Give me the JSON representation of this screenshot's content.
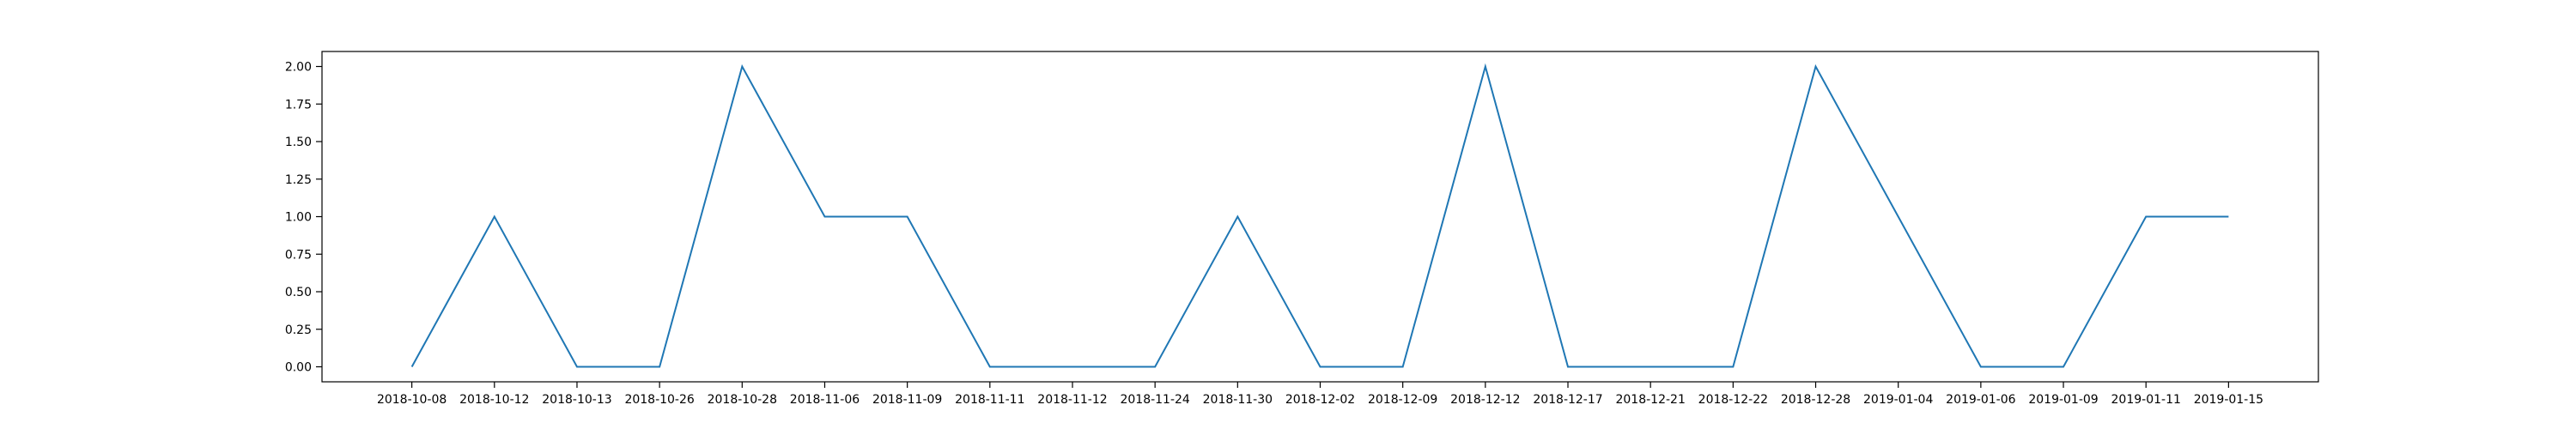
{
  "chart_data": {
    "type": "line",
    "x": [
      "2018-10-08",
      "2018-10-12",
      "2018-10-13",
      "2018-10-26",
      "2018-10-28",
      "2018-11-06",
      "2018-11-09",
      "2018-11-11",
      "2018-11-12",
      "2018-11-24",
      "2018-11-30",
      "2018-12-02",
      "2018-12-09",
      "2018-12-12",
      "2018-12-17",
      "2018-12-21",
      "2018-12-22",
      "2018-12-28",
      "2019-01-04",
      "2019-01-06",
      "2019-01-09",
      "2019-01-11",
      "2019-01-15"
    ],
    "series": [
      {
        "values": [
          0,
          1,
          0,
          0,
          2,
          1,
          1,
          0,
          0,
          0,
          1,
          0,
          0,
          2,
          0,
          0,
          0,
          2,
          1,
          0,
          0,
          1,
          1
        ],
        "color": "#1f77b4"
      }
    ],
    "yticks": [
      "0.00",
      "0.25",
      "0.50",
      "0.75",
      "1.00",
      "1.25",
      "1.50",
      "1.75",
      "2.00"
    ],
    "ylim": [
      -0.1,
      2.1
    ],
    "title": "",
    "xlabel": "",
    "ylabel": "",
    "grid": false,
    "legend": "none"
  }
}
